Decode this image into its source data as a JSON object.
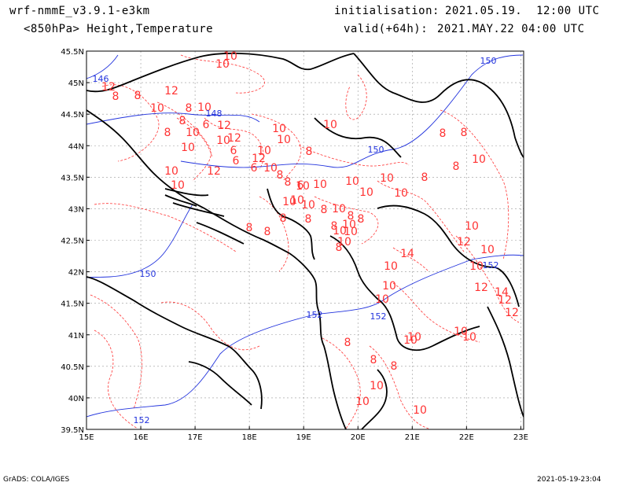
{
  "header": {
    "model": "wrf-nmmE_v3.9.1-e3km",
    "field": "<850hPa> Height,Temperature",
    "init_label": "initialisation:",
    "init_value": "2021.05.19.  12:00 UTC",
    "valid_label": "valid(+64h):",
    "valid_value": "2021.MAY.22 04:00 UTC"
  },
  "footer": {
    "credit": "GrADS: COLA/IGES",
    "timestamp": "2021-05-19-23:04"
  },
  "colors": {
    "temperature": "#ff3333",
    "height": "#2233dd",
    "coast": "#000000",
    "grid": "#999999"
  },
  "map": {
    "lon_ticks": [
      "15E",
      "16E",
      "17E",
      "18E",
      "19E",
      "20E",
      "21E",
      "22E",
      "23E"
    ],
    "lat_ticks": [
      "45.5N",
      "45N",
      "44.5N",
      "44N",
      "43.5N",
      "43N",
      "42.5N",
      "42N",
      "41.5N",
      "41N",
      "40.5N",
      "40N",
      "39.5N"
    ],
    "height_labels": [
      "146",
      "148",
      "150",
      "150",
      "150",
      "152",
      "152",
      "152",
      "152"
    ],
    "temperature_labels": [
      "10",
      "12",
      "8",
      "8",
      "10",
      "12",
      "10",
      "8",
      "6",
      "12",
      "10",
      "10",
      "8",
      "10",
      "6",
      "12",
      "10",
      "10",
      "10",
      "8",
      "10",
      "10",
      "12",
      "8",
      "6",
      "6",
      "10",
      "8",
      "8",
      "6",
      "10",
      "8",
      "12",
      "10",
      "10",
      "8",
      "8",
      "10",
      "8",
      "8",
      "10",
      "10",
      "10",
      "10",
      "8",
      "8",
      "8",
      "8",
      "10",
      "10",
      "10",
      "10",
      "10",
      "10",
      "10",
      "8",
      "8",
      "8",
      "8",
      "10",
      "10",
      "12",
      "10",
      "10",
      "14",
      "12",
      "14",
      "12",
      "12",
      "10",
      "10",
      "10",
      "10",
      "10",
      "10",
      "10",
      "8",
      "8",
      "8",
      "10",
      "10",
      "10",
      "10"
    ]
  }
}
